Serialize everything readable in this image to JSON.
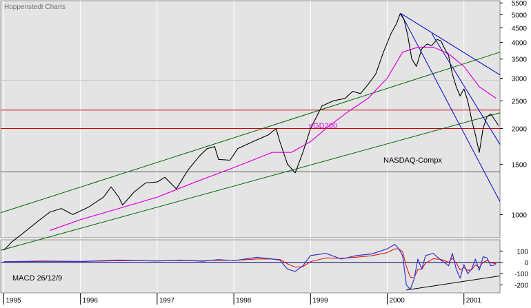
{
  "brand": "Hoppenstedt Charts",
  "colors": {
    "background": "#ffffff",
    "plot_background": "#e4e4e4",
    "price_line": "#000000",
    "moving_average": "#e000e0",
    "trend_channel": "#006600",
    "downtrend_lines": "#0000cc",
    "horizontal_levels": "#cc0000",
    "macd_line": "#3333cc",
    "macd_signal": "#e00000",
    "gridline": "#ffffff",
    "zero_line": "#000066"
  },
  "chart_data": [
    {
      "type": "line",
      "title": "",
      "series_label": "NASDAQ-Compx",
      "ma_label": "eGD200",
      "scale": "log",
      "ylim": [
        830,
        5600
      ],
      "y_ticks": [
        5500,
        5000,
        4500,
        4000,
        3500,
        3000,
        2500,
        2000,
        1500,
        1000
      ],
      "x_ticks": [
        "1995",
        "1996",
        "1997",
        "1998",
        "1999",
        "2000",
        "2001"
      ],
      "x_tick_values": [
        1995,
        1996,
        1997,
        1998,
        1999,
        2000,
        2001
      ],
      "xlim": [
        1994.96,
        2001.47
      ],
      "grid": true,
      "price": {
        "name": "NASDAQ-Compx",
        "x": [
          1995.0,
          1995.1,
          1995.25,
          1995.45,
          1995.6,
          1995.75,
          1995.9,
          1996.1,
          1996.3,
          1996.4,
          1996.5,
          1996.55,
          1996.7,
          1996.85,
          1997.0,
          1997.1,
          1997.25,
          1997.4,
          1997.55,
          1997.65,
          1997.75,
          1997.8,
          1997.95,
          1998.05,
          1998.25,
          1998.45,
          1998.55,
          1998.6,
          1998.7,
          1998.8,
          1998.9,
          1999.0,
          1999.15,
          1999.3,
          1999.45,
          1999.55,
          1999.65,
          1999.75,
          1999.85,
          1999.95,
          2000.05,
          2000.12,
          2000.17,
          2000.22,
          2000.27,
          2000.32,
          2000.38,
          2000.45,
          2000.52,
          2000.58,
          2000.65,
          2000.7,
          2000.75,
          2000.8,
          2000.85,
          2000.9,
          2000.95,
          2001.0,
          2001.05,
          2001.1,
          2001.15,
          2001.2,
          2001.25,
          2001.3,
          2001.35,
          2001.4,
          2001.45
        ],
        "y": [
          750,
          800,
          860,
          950,
          1020,
          1050,
          1000,
          1060,
          1150,
          1250,
          1150,
          1080,
          1200,
          1290,
          1300,
          1350,
          1230,
          1430,
          1600,
          1700,
          1730,
          1560,
          1550,
          1700,
          1800,
          1900,
          2000,
          1800,
          1500,
          1400,
          1650,
          2000,
          2400,
          2500,
          2550,
          2700,
          2650,
          2850,
          3100,
          3700,
          4300,
          4650,
          5048,
          4800,
          4200,
          3500,
          3300,
          3800,
          3950,
          3900,
          4100,
          4050,
          3800,
          3600,
          3100,
          2800,
          2600,
          2750,
          2500,
          2150,
          1900,
          1650,
          2000,
          2200,
          2250,
          2150,
          2050
        ]
      },
      "moving_average": {
        "name": "eGD200",
        "x": [
          1995.6,
          1996.0,
          1996.5,
          1997.0,
          1997.5,
          1998.0,
          1998.5,
          1998.75,
          1999.0,
          1999.25,
          1999.5,
          1999.75,
          2000.0,
          2000.2,
          2000.4,
          2000.6,
          2000.8,
          2001.0,
          2001.2,
          2001.42
        ],
        "y": [
          880,
          960,
          1050,
          1150,
          1300,
          1460,
          1650,
          1650,
          1800,
          2050,
          2300,
          2550,
          3000,
          3700,
          3850,
          3850,
          3650,
          3300,
          2800,
          2550
        ]
      },
      "trend_channel": [
        {
          "from": [
            1994.96,
            1015
          ],
          "to": [
            2001.47,
            3700
          ]
        },
        {
          "from": [
            1994.96,
            750
          ],
          "to": [
            2001.47,
            2270
          ]
        }
      ],
      "downtrend_lines": [
        {
          "from": [
            2000.18,
            5048
          ],
          "to": [
            2001.47,
            1110
          ]
        },
        {
          "from": [
            2000.18,
            5048
          ],
          "to": [
            2001.47,
            3080
          ]
        },
        {
          "from": [
            2000.58,
            4300
          ],
          "to": [
            2001.47,
            1760
          ]
        }
      ],
      "horizontal_levels": [
        {
          "y": 2950,
          "color": "#cccccc"
        },
        {
          "y": 2320,
          "color": "#cc0000"
        },
        {
          "y": 2000,
          "color": "#cc0000"
        },
        {
          "y": 1410,
          "color": "#555555"
        }
      ]
    },
    {
      "type": "line",
      "title": "",
      "series_label": "MACD 26/12/9",
      "ylim": [
        -270,
        200
      ],
      "y_ticks": [
        100,
        0,
        -100,
        -200
      ],
      "xlim": [
        1994.96,
        2001.47
      ],
      "macd": {
        "name": "MACD",
        "x": [
          1995.0,
          1995.5,
          1996.0,
          1996.3,
          1996.5,
          1997.0,
          1997.3,
          1997.6,
          1997.8,
          1998.0,
          1998.3,
          1998.5,
          1998.6,
          1998.7,
          1998.8,
          1998.9,
          1999.0,
          1999.2,
          1999.4,
          1999.6,
          1999.8,
          2000.0,
          2000.1,
          2000.15,
          2000.2,
          2000.25,
          2000.3,
          2000.35,
          2000.4,
          2000.45,
          2000.5,
          2000.6,
          2000.7,
          2000.8,
          2000.85,
          2000.9,
          2000.95,
          2001.0,
          2001.05,
          2001.1,
          2001.15,
          2001.2,
          2001.25,
          2001.3,
          2001.35,
          2001.42
        ],
        "y": [
          5,
          12,
          8,
          15,
          20,
          12,
          20,
          10,
          25,
          15,
          45,
          30,
          20,
          -60,
          -80,
          -30,
          60,
          80,
          30,
          60,
          75,
          120,
          160,
          120,
          60,
          -200,
          -240,
          -150,
          30,
          -60,
          60,
          80,
          20,
          -30,
          80,
          -60,
          -140,
          -20,
          -100,
          -60,
          30,
          -70,
          50,
          40,
          -30,
          -20
        ]
      },
      "macd_trend_line": {
        "from": [
          2000.25,
          -245
        ],
        "to": [
          2001.47,
          -120
        ]
      }
    }
  ]
}
